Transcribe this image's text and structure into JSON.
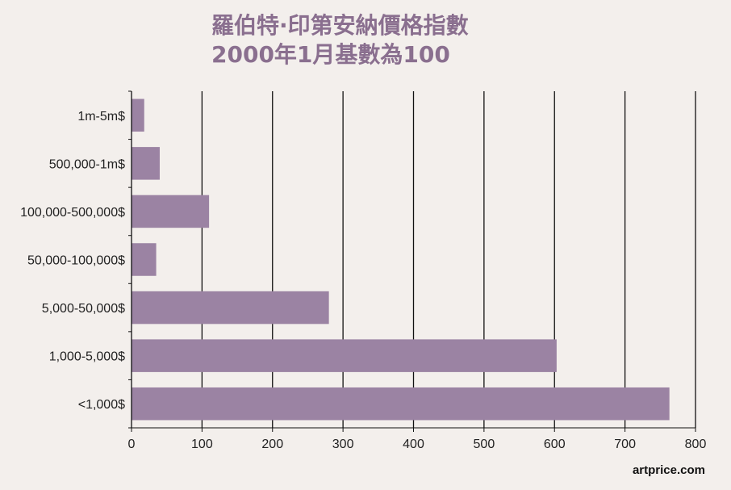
{
  "title": {
    "line1": "羅伯特·印第安納價格指數",
    "line2": "2000年1月基數為100"
  },
  "brand": "artprice.com",
  "colors": {
    "bar": "#9b83a3",
    "title": "#8a6f8f",
    "background": "#f3efec"
  },
  "chart_data": {
    "type": "bar",
    "orientation": "horizontal",
    "categories": [
      "1m-5m$",
      "500,000-1m$",
      "100,000-500,000$",
      "50,000-100,000$",
      "5,000-50,000$",
      "1,000-5,000$",
      "<1,000$"
    ],
    "values": [
      18,
      40,
      110,
      35,
      280,
      603,
      763
    ],
    "xlim": [
      0,
      800
    ],
    "xticks": [
      "0",
      "100",
      "200",
      "300",
      "400",
      "500",
      "600",
      "700",
      "800"
    ],
    "grid": true
  }
}
